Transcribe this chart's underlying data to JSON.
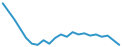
{
  "x": [
    0,
    1,
    2,
    3,
    4,
    5,
    6,
    7,
    8,
    9,
    10,
    11,
    12,
    13,
    14,
    15,
    16,
    17,
    18,
    19,
    20
  ],
  "y": [
    92,
    85,
    78,
    70,
    62,
    57,
    56,
    60,
    57,
    62,
    65,
    63,
    67,
    65,
    66,
    64,
    65,
    63,
    64,
    60,
    56
  ],
  "line_color": "#2e96c8",
  "linewidth": 1.4,
  "background_color": "#ffffff"
}
